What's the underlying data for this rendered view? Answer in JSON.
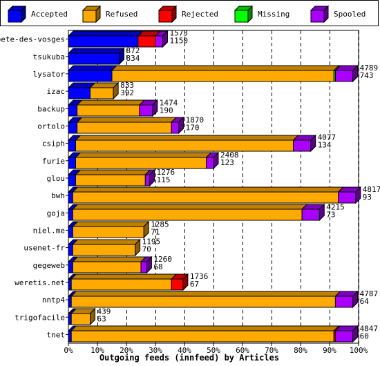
{
  "colors": {
    "accepted": "#0000ff",
    "refused": "#ffaa00",
    "rejected": "#ff0000",
    "missing": "#00ff00",
    "spooled": "#aa00ff"
  },
  "chart_data": {
    "type": "bar",
    "orientation": "horizontal",
    "stacked": true,
    "title": "Outgoing feeds (innfeed) by Articles",
    "xlim": [
      0,
      100
    ],
    "x_ticks": [
      "0%",
      "10%",
      "20%",
      "30%",
      "40%",
      "50%",
      "60%",
      "70%",
      "80%",
      "90%",
      "100%"
    ],
    "grid": true,
    "legend_position": "top",
    "legend": [
      "Accepted",
      "Refused",
      "Rejected",
      "Missing",
      "Spooled"
    ],
    "categories": [
      "bete-des-vosges",
      "tsukuba",
      "lysator",
      "izac",
      "backup",
      "ortolo",
      "csiph",
      "furie",
      "glou",
      "bwh",
      "goja",
      "niel.me",
      "usenet-fr",
      "gegeweb",
      "weretis.net",
      "nntp4",
      "trigofacile",
      "tnet"
    ],
    "total_offered": [
      1573,
      872,
      4789,
      833,
      1474,
      1870,
      4077,
      2408,
      1276,
      4817,
      4215,
      1285,
      1195,
      1260,
      1736,
      4787,
      439,
      4847
    ],
    "accepted_counts": [
      1150,
      834,
      743,
      392,
      190,
      170,
      134,
      123,
      115,
      93,
      73,
      71,
      70,
      68,
      67,
      64,
      63,
      60
    ],
    "series": [
      {
        "name": "Accepted",
        "color_key": "accepted",
        "values": [
          24,
          17.5,
          15,
          7.5,
          3,
          3,
          2.5,
          2.5,
          2.5,
          1.5,
          1.5,
          1.5,
          1.5,
          1.5,
          1,
          1,
          1,
          1
        ]
      },
      {
        "name": "Refused",
        "color_key": "refused",
        "values": [
          0,
          0,
          76.5,
          8,
          21.5,
          32.5,
          75,
          45,
          24,
          91.5,
          79,
          24.5,
          21.5,
          23.5,
          34.5,
          91,
          6.5,
          90.5
        ]
      },
      {
        "name": "Rejected",
        "color_key": "rejected",
        "values": [
          6,
          0,
          0,
          0,
          0,
          0,
          0,
          0,
          0,
          0,
          0,
          0,
          0,
          0,
          4,
          0,
          0,
          0.5
        ]
      },
      {
        "name": "Missing",
        "color_key": "missing",
        "values": [
          0,
          0,
          0.5,
          0,
          0,
          0,
          0,
          0,
          0,
          0,
          0,
          0,
          0,
          0,
          0,
          0,
          0,
          0
        ]
      },
      {
        "name": "Spooled",
        "color_key": "spooled",
        "values": [
          2.5,
          0,
          6,
          0,
          4.5,
          2.5,
          6,
          2.5,
          1.5,
          6,
          6,
          0,
          0,
          2,
          0,
          6,
          0,
          6
        ]
      }
    ]
  }
}
